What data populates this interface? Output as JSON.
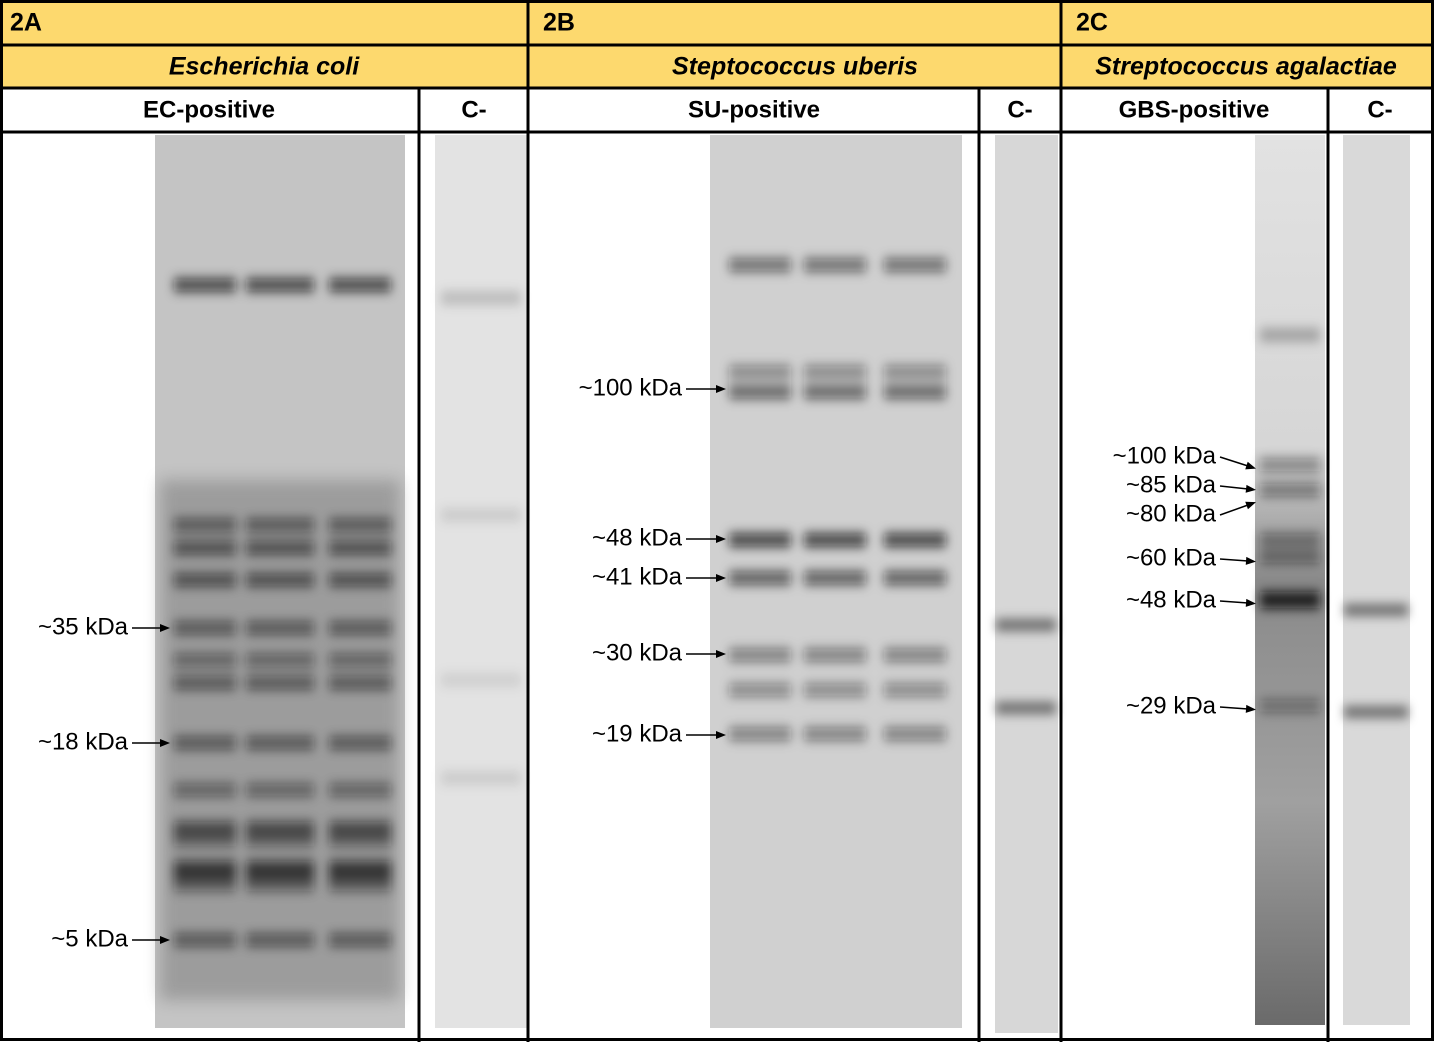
{
  "panels": [
    {
      "id": "2A",
      "organism": "Escherichia coli",
      "columns": [
        "EC-positive",
        "C-"
      ],
      "markers": [
        "~35 kDa",
        "~18 kDa",
        "~5 kDa"
      ]
    },
    {
      "id": "2B",
      "organism": "Steptococcus uberis",
      "columns": [
        "SU-positive",
        "C-"
      ],
      "markers": [
        "~100 kDa",
        "~48 kDa",
        "~41 kDa",
        "~30 kDa",
        "~19 kDa"
      ]
    },
    {
      "id": "2C",
      "organism": "Streptococcus agalactiae",
      "columns": [
        "GBS-positive",
        "C-"
      ],
      "markers": [
        "~100 kDa",
        "~85 kDa",
        "~80 kDa",
        "~60 kDa",
        "~48 kDa",
        "~29 kDa"
      ]
    }
  ]
}
